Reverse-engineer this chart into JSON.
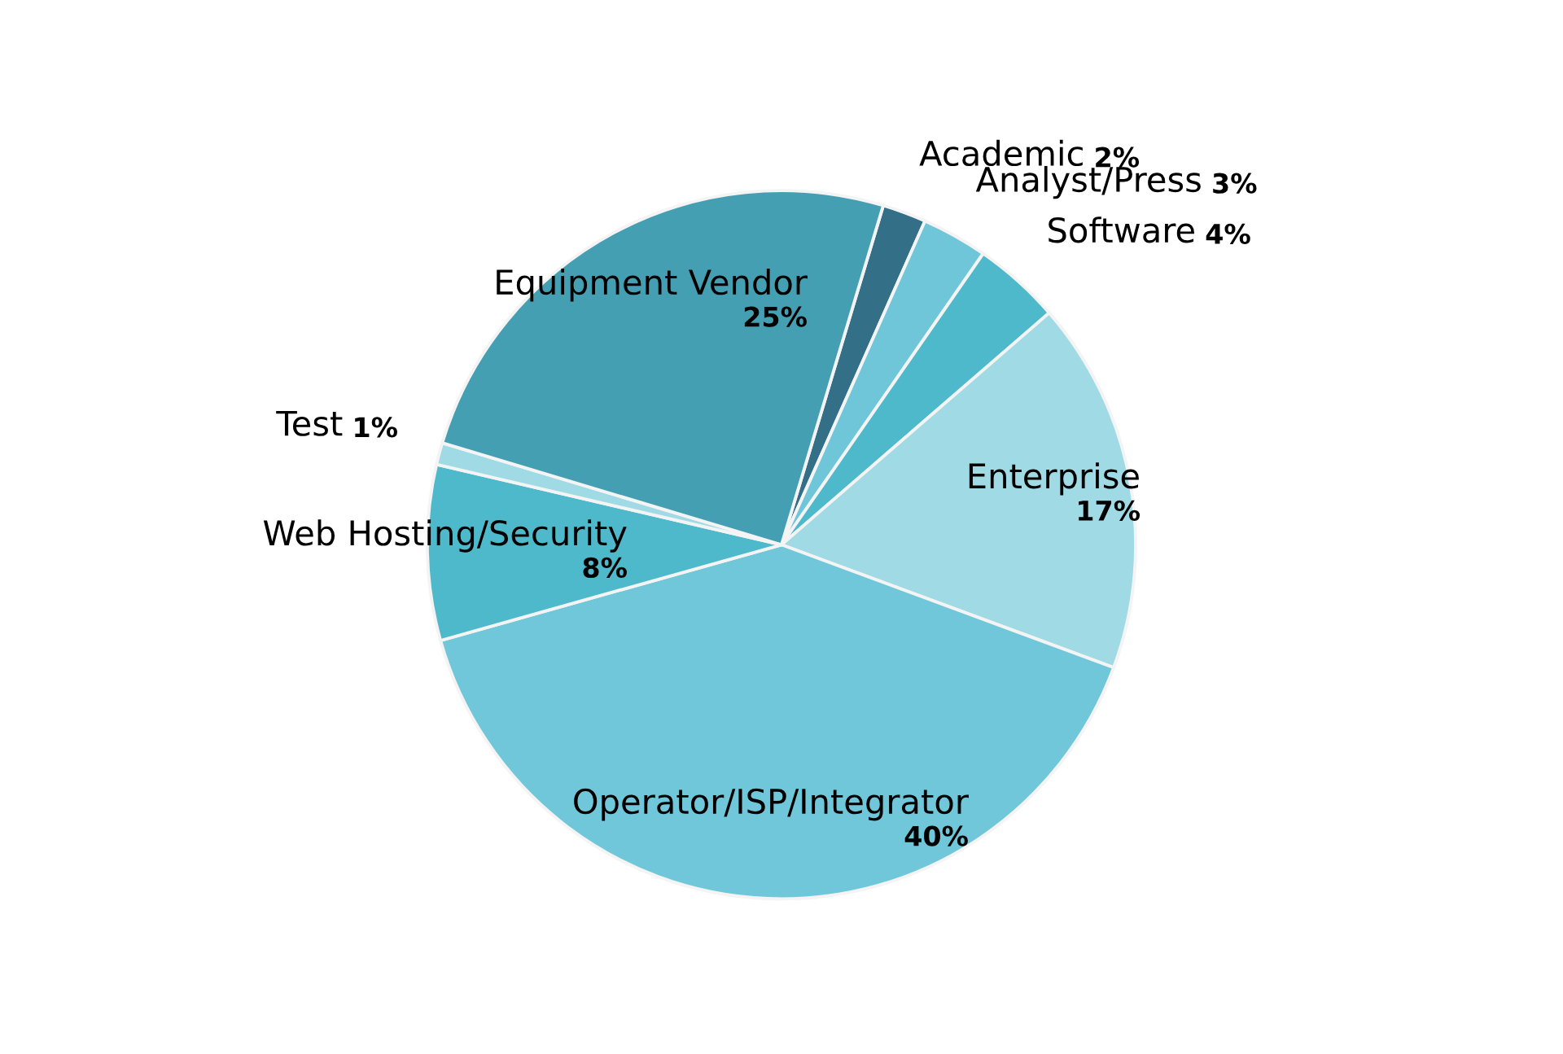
{
  "chart_data": {
    "type": "pie",
    "categories": [
      "Academic",
      "Analyst/Press",
      "Software",
      "Enterprise",
      "Operator/ISP/Integrator",
      "Web Hosting/Security",
      "Test",
      "Equipment Vendor"
    ],
    "values": [
      2,
      3,
      4,
      17,
      40,
      8,
      1,
      25
    ],
    "value_labels": [
      "2%",
      "3%",
      "4%",
      "17%",
      "40%",
      "8%",
      "1%",
      "25%"
    ],
    "colors": [
      "#336f87",
      "#6fc6d8",
      "#4fb9cc",
      "#a0dbe5",
      "#70c7d9",
      "#4fb9cc",
      "#a0dbe5",
      "#459fb2"
    ],
    "legend": false
  }
}
